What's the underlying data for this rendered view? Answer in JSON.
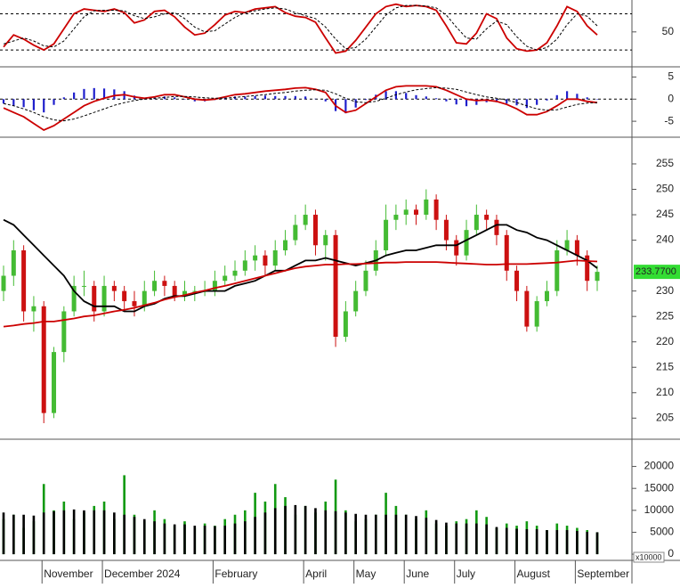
{
  "chart_data": [
    {
      "type": "line",
      "ylim": [
        -5,
        100
      ],
      "yticks": [
        50
      ],
      "levels": [
        20,
        80
      ],
      "series": [
        {
          "color": "#cc0000",
          "dash": false,
          "values": [
            25,
            45,
            38,
            28,
            20,
            30,
            55,
            80,
            88,
            86,
            84,
            88,
            82,
            65,
            70,
            84,
            86,
            75,
            58,
            45,
            48,
            62,
            78,
            84,
            82,
            88,
            90,
            92,
            82,
            76,
            74,
            66,
            40,
            15,
            18,
            36,
            58,
            80,
            92,
            96,
            92,
            94,
            92,
            86,
            60,
            32,
            30,
            48,
            80,
            72,
            40,
            22,
            18,
            20,
            32,
            60,
            92,
            84,
            60,
            45
          ]
        },
        {
          "color": "#000000",
          "dash": true,
          "values": [
            30,
            35,
            40,
            35,
            27,
            25,
            35,
            55,
            75,
            85,
            86,
            86,
            85,
            77,
            72,
            75,
            80,
            82,
            72,
            58,
            50,
            52,
            63,
            74,
            82,
            85,
            88,
            90,
            88,
            82,
            77,
            72,
            58,
            38,
            22,
            24,
            38,
            58,
            78,
            90,
            94,
            94,
            93,
            90,
            78,
            58,
            40,
            38,
            55,
            68,
            62,
            42,
            26,
            20,
            24,
            38,
            62,
            80,
            76,
            60
          ]
        }
      ]
    },
    {
      "type": "line",
      "ylim": [
        -8.2,
        6.9
      ],
      "yticks": [
        5,
        0,
        -5
      ],
      "levels": [
        0
      ],
      "series": [
        {
          "type": "bar",
          "color": "#1f1fcc",
          "values": [
            -1,
            -1.5,
            -1.8,
            -2.5,
            -3,
            -1.3,
            0.4,
            1.5,
            2.3,
            2.5,
            2.4,
            2.2,
            1.8,
            0.8,
            0.2,
            0.3,
            0.6,
            0.4,
            -0.1,
            -0.5,
            -0.5,
            -0.2,
            0.3,
            0.6,
            0.6,
            0.7,
            0.8,
            0.7,
            0.7,
            0.7,
            0.6,
            0.1,
            -0.5,
            -2.7,
            -3.2,
            -1.9,
            -0.2,
            1,
            1.8,
            1.8,
            1.4,
            0.9,
            0.6,
            0.2,
            -0.5,
            -1.2,
            -1.6,
            -1.3,
            -0.7,
            -0.7,
            -1,
            -1.4,
            -2,
            -1.3,
            -0.3,
            0.9,
            1.8,
            1.2,
            0.4,
            0
          ]
        },
        {
          "color": "#cc0000",
          "dash": false,
          "values": [
            -2,
            -3,
            -4,
            -5.5,
            -7,
            -6,
            -4.5,
            -3,
            -1.5,
            -0.5,
            0.2,
            0.8,
            1,
            0.5,
            0.2,
            0.5,
            1,
            1,
            0.5,
            0,
            -0.2,
            0,
            0.5,
            1,
            1.2,
            1.5,
            1.8,
            2,
            2.2,
            2.5,
            2.6,
            2.2,
            1.5,
            -1.5,
            -3,
            -2.5,
            -1,
            0.5,
            2,
            2.8,
            3,
            3,
            3,
            2.8,
            2,
            1,
            0,
            -0.3,
            -0.2,
            -0.5,
            -1.2,
            -2.2,
            -3.5,
            -3.5,
            -2.8,
            -1.5,
            0,
            0,
            -0.5,
            -0.8
          ]
        },
        {
          "color": "#000000",
          "dash": true,
          "values": [
            -1,
            -1.5,
            -2.2,
            -3,
            -4,
            -4.7,
            -4.9,
            -4.5,
            -3.8,
            -3,
            -2.2,
            -1.4,
            -0.8,
            -0.3,
            0,
            0.2,
            0.4,
            0.6,
            0.6,
            0.5,
            0.3,
            0.2,
            0.2,
            0.4,
            0.6,
            0.8,
            1,
            1.3,
            1.5,
            1.8,
            2,
            2.1,
            2,
            1.2,
            0.2,
            -0.6,
            -0.8,
            -0.5,
            0.2,
            1,
            1.6,
            2.1,
            2.4,
            2.6,
            2.5,
            2.2,
            1.6,
            1,
            0.5,
            0.2,
            -0.2,
            -0.8,
            -1.5,
            -2.2,
            -2.5,
            -2.4,
            -1.8,
            -1.2,
            -0.9,
            -0.8
          ]
        }
      ]
    },
    {
      "type": "candlestick",
      "ylim": [
        201.2,
        259.9
      ],
      "yticks": [
        205,
        210,
        215,
        220,
        225,
        230,
        240,
        245,
        250,
        255
      ],
      "up_color": "#44bb33",
      "down_color": "#cc1111",
      "last_label": "233.7700",
      "last_label_color": "#33dd33",
      "open": [
        230,
        233,
        238,
        226,
        227,
        206,
        218,
        226,
        231,
        231,
        226,
        231,
        230,
        228,
        227,
        230,
        232,
        231,
        229,
        230,
        230,
        230,
        232,
        233,
        234,
        236,
        237,
        235,
        238,
        240,
        243,
        245,
        239,
        241,
        221,
        226,
        230,
        234,
        238,
        244,
        245,
        246,
        245,
        248,
        244,
        240,
        237,
        242,
        245,
        244,
        241,
        234,
        230,
        223,
        228,
        230,
        238,
        240,
        237,
        232
      ],
      "high": [
        235,
        240,
        239,
        229,
        228,
        219,
        227,
        233,
        234,
        232,
        233,
        232,
        231,
        230,
        232,
        234,
        233,
        232,
        232,
        231,
        232,
        234,
        235,
        236,
        238,
        239,
        238,
        240,
        242,
        245,
        247,
        246,
        242,
        242,
        228,
        232,
        236,
        240,
        247,
        247,
        248,
        247,
        250,
        249,
        245,
        241,
        244,
        247,
        246,
        245,
        242,
        235,
        231,
        229,
        232,
        240,
        242,
        241,
        238,
        235
      ],
      "low": [
        228,
        231,
        224,
        222,
        204,
        205,
        216,
        225,
        229,
        224,
        225,
        228,
        226,
        225,
        226,
        229,
        229,
        228,
        228,
        228,
        229,
        229,
        231,
        232,
        233,
        234,
        233,
        234,
        237,
        239,
        242,
        237,
        236,
        219,
        220,
        225,
        229,
        233,
        237,
        242,
        243,
        243,
        244,
        242,
        238,
        235,
        236,
        241,
        242,
        239,
        232,
        228,
        222,
        222,
        227,
        229,
        237,
        235,
        230,
        230
      ],
      "close": [
        233,
        238,
        226,
        227,
        206,
        218,
        226,
        231,
        231,
        226,
        231,
        230,
        228,
        227,
        230,
        232,
        231,
        229,
        230,
        230,
        230,
        232,
        233,
        234,
        236,
        237,
        235,
        238,
        240,
        243,
        245,
        239,
        241,
        221,
        226,
        230,
        234,
        238,
        244,
        245,
        246,
        245,
        248,
        244,
        240,
        237,
        242,
        245,
        244,
        241,
        234,
        230,
        223,
        228,
        230,
        238,
        240,
        237,
        232,
        233.77
      ],
      "series": [
        {
          "color": "#000000",
          "dash": false,
          "values": [
            244,
            243,
            241,
            239,
            237,
            235,
            233,
            230,
            228,
            227,
            227,
            227,
            226,
            226,
            227,
            227.5,
            228.5,
            229,
            229,
            229.5,
            230,
            230,
            230,
            231,
            231.5,
            232,
            233,
            234,
            234,
            235,
            236,
            236,
            236.5,
            236,
            235.5,
            235,
            235.5,
            236,
            237,
            237.5,
            238,
            238,
            238.5,
            239,
            239,
            239,
            240,
            241,
            242,
            243,
            243,
            242,
            241.5,
            240.5,
            240,
            239,
            238,
            237,
            236,
            234.5
          ]
        },
        {
          "color": "#cc0000",
          "dash": false,
          "values": [
            223,
            223.2,
            223.5,
            223.7,
            224,
            224,
            224.3,
            224.6,
            225,
            225.2,
            225.6,
            226,
            226.3,
            226.7,
            227.2,
            227.7,
            228.3,
            228.8,
            229.2,
            229.7,
            230.1,
            230.6,
            231,
            231.5,
            232,
            232.5,
            233,
            233.5,
            234,
            234.5,
            234.8,
            235,
            235.2,
            235.2,
            235.3,
            235.3,
            235.4,
            235.5,
            235.6,
            235.6,
            235.7,
            235.7,
            235.7,
            235.7,
            235.6,
            235.5,
            235.4,
            235.3,
            235.2,
            235.2,
            235.3,
            235.3,
            235.3,
            235.4,
            235.5,
            235.6,
            235.8,
            236,
            235.9,
            235.8
          ]
        }
      ]
    },
    {
      "type": "bar",
      "ylim": [
        -1000,
        25800
      ],
      "yticks": [
        0,
        5000,
        10000,
        15000,
        20000
      ],
      "unit_label": "x10000",
      "categories": [
        null,
        null,
        null,
        null,
        "November",
        null,
        null,
        null,
        null,
        null,
        "December 2024",
        null,
        null,
        null,
        null,
        null,
        null,
        null,
        null,
        null,
        null,
        "February",
        null,
        null,
        null,
        null,
        null,
        null,
        null,
        null,
        "April",
        null,
        null,
        null,
        null,
        "May",
        null,
        null,
        null,
        null,
        "June",
        null,
        null,
        null,
        null,
        "July",
        null,
        null,
        null,
        null,
        null,
        "August",
        null,
        null,
        null,
        null,
        null,
        "September",
        null,
        null
      ],
      "series": [
        {
          "type": "bar",
          "color": "#119911",
          "values": [
            8000,
            9000,
            6000,
            7500,
            16000,
            10000,
            12000,
            8000,
            9500,
            11000,
            12000,
            8000,
            18000,
            9000,
            7500,
            10000,
            8000,
            6500,
            7500,
            6000,
            7000,
            6500,
            8000,
            9000,
            10000,
            14000,
            12000,
            16000,
            13000,
            9000,
            11000,
            9500,
            12000,
            17000,
            10000,
            7500,
            8000,
            9000,
            14000,
            11000,
            9000,
            8000,
            10000,
            7000,
            6500,
            7500,
            8000,
            10000,
            8500,
            6000,
            7000,
            6500,
            7500,
            6500,
            5500,
            7000,
            6500,
            6000,
            5500,
            5000
          ]
        },
        {
          "color": "#000000",
          "dash": false,
          "values": [
            9500,
            9000,
            9000,
            8800,
            9500,
            9800,
            10000,
            10200,
            10000,
            10000,
            10000,
            9500,
            9000,
            8500,
            8000,
            7500,
            7000,
            6800,
            6800,
            6500,
            6500,
            6400,
            6500,
            7000,
            7500,
            8500,
            9500,
            10500,
            11000,
            11200,
            11000,
            10500,
            10000,
            9800,
            9500,
            9200,
            9000,
            9000,
            9000,
            9000,
            9000,
            8700,
            8300,
            7800,
            7200,
            7000,
            7000,
            7000,
            6800,
            6200,
            6000,
            5800,
            5700,
            5700,
            5500,
            5500,
            5500,
            5300,
            5100,
            5000
          ]
        }
      ]
    }
  ]
}
